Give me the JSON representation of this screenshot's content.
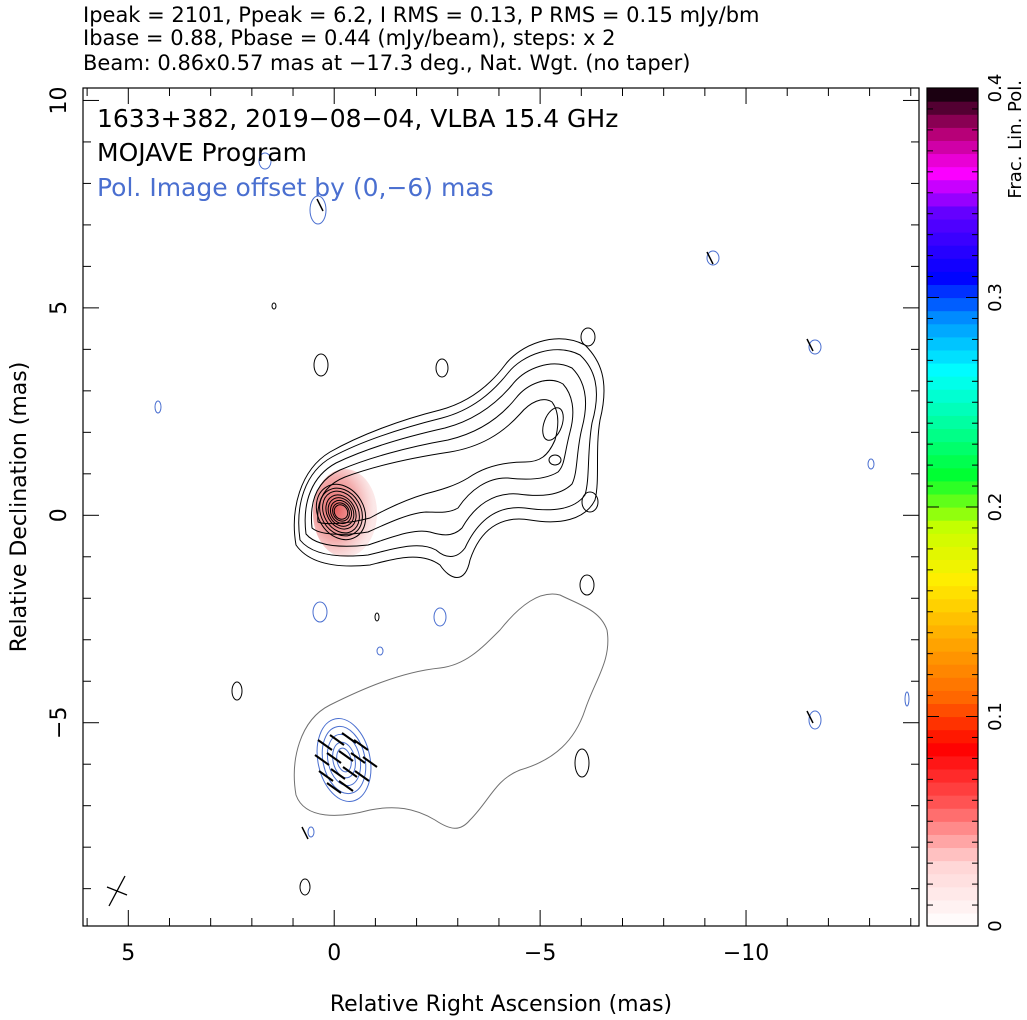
{
  "header": {
    "line1": "Ipeak = 2101, Ppeak = 6.2, I RMS = 0.13, P RMS = 0.15 mJy/bm",
    "line2": "Ibase = 0.88, Pbase = 0.44 (mJy/beam), steps: x 2",
    "line3": "Beam: 0.86x0.57 mas at −17.3 deg., Nat. Wgt. (no taper)"
  },
  "annotations": {
    "source": "1633+382, 2019−08−04, VLBA 15.4 GHz",
    "program": "MOJAVE Program",
    "offset": "Pol. Image offset by (0,−6) mas"
  },
  "colors": {
    "stokes_i_contours": "#000000",
    "pol_contours": "#4a6fd0",
    "fpol_core": "#e55555",
    "annotation_offset": "#4a6fd0",
    "envelope": "#707070"
  },
  "chart_data": {
    "type": "heatmap",
    "subtype": "radio-contour-map",
    "xlabel": "Relative Right Ascension (mas)",
    "ylabel": "Relative Declination (mas)",
    "xlim": [
      6.1,
      -14.2
    ],
    "ylim": [
      -9.9,
      10.3
    ],
    "x_ticks": [
      5,
      0,
      -5,
      -10
    ],
    "x_ticklabels": [
      "5",
      "0",
      "−5",
      "−10"
    ],
    "y_ticks": [
      10,
      5,
      0,
      -5
    ],
    "y_ticklabels": [
      "10",
      "5",
      "0",
      "−5"
    ],
    "colorbar": {
      "label": "Frac. Lin. Pol.",
      "range": [
        0,
        0.4
      ],
      "ticks": [
        0,
        0.1,
        0.2,
        0.3,
        0.4
      ],
      "ticklabels": [
        "0",
        "0.1",
        "0.2",
        "0.3",
        "0.4"
      ]
    },
    "stokes_i": {
      "peak_position": [
        0,
        0
      ],
      "peak_mJy_per_beam": 2101,
      "base_mJy_per_beam": 0.88,
      "contour_step": 2,
      "jet_direction": "north-west"
    },
    "polarization": {
      "peak_mJy_per_beam": 6.2,
      "base_mJy_per_beam": 0.44,
      "offset_mas": [
        0,
        -6
      ],
      "fractional_pol_core": 0.03
    },
    "beam": {
      "major_mas": 0.86,
      "minor_mas": 0.57,
      "pa_deg": -17.3
    }
  }
}
